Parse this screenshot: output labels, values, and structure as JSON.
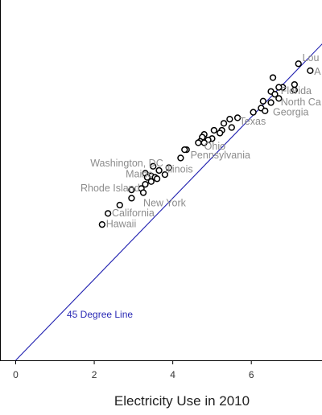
{
  "chart_data": {
    "type": "scatter",
    "xlabel": "Electricity Use in 2010",
    "ylabel": "",
    "xlim": [
      -0.4,
      7.8
    ],
    "ylim": [
      0,
      13
    ],
    "xticks": [
      "0",
      "2",
      "4",
      "6"
    ],
    "xtick_values": [
      0,
      2,
      4,
      6
    ],
    "reference_line": {
      "label": "45 Degree Line",
      "color": "#2020b0",
      "from": [
        0,
        0
      ],
      "to": [
        8,
        11.7
      ]
    },
    "marker_color": "#000000",
    "label_color": "#8c8c8c",
    "points": [
      {
        "x": 7.2,
        "y": 10.7
      },
      {
        "x": 7.5,
        "y": 10.45
      },
      {
        "x": 6.55,
        "y": 10.2
      },
      {
        "x": 7.1,
        "y": 9.95
      },
      {
        "x": 6.8,
        "y": 9.85
      },
      {
        "x": 6.7,
        "y": 9.85
      },
      {
        "x": 7.1,
        "y": 9.75
      },
      {
        "x": 6.5,
        "y": 9.7
      },
      {
        "x": 6.6,
        "y": 9.6
      },
      {
        "x": 6.7,
        "y": 9.45
      },
      {
        "x": 6.3,
        "y": 9.35
      },
      {
        "x": 6.5,
        "y": 9.3
      },
      {
        "x": 6.25,
        "y": 9.1
      },
      {
        "x": 6.35,
        "y": 9.0
      },
      {
        "x": 6.05,
        "y": 8.95
      },
      {
        "x": 5.65,
        "y": 8.75
      },
      {
        "x": 5.45,
        "y": 8.7
      },
      {
        "x": 5.3,
        "y": 8.55
      },
      {
        "x": 5.5,
        "y": 8.4
      },
      {
        "x": 5.05,
        "y": 8.3
      },
      {
        "x": 5.25,
        "y": 8.3
      },
      {
        "x": 5.2,
        "y": 8.2
      },
      {
        "x": 4.8,
        "y": 8.15
      },
      {
        "x": 4.75,
        "y": 8.05
      },
      {
        "x": 5.0,
        "y": 8.0
      },
      {
        "x": 4.9,
        "y": 7.95
      },
      {
        "x": 4.7,
        "y": 7.9
      },
      {
        "x": 4.8,
        "y": 7.85
      },
      {
        "x": 4.65,
        "y": 7.85
      },
      {
        "x": 4.35,
        "y": 7.6
      },
      {
        "x": 4.3,
        "y": 7.6
      },
      {
        "x": 4.2,
        "y": 7.3
      },
      {
        "x": 3.5,
        "y": 7.0
      },
      {
        "x": 3.9,
        "y": 6.95
      },
      {
        "x": 3.65,
        "y": 6.85
      },
      {
        "x": 3.8,
        "y": 6.7
      },
      {
        "x": 3.3,
        "y": 6.75
      },
      {
        "x": 3.45,
        "y": 6.65
      },
      {
        "x": 3.55,
        "y": 6.6
      },
      {
        "x": 3.35,
        "y": 6.6
      },
      {
        "x": 3.6,
        "y": 6.55
      },
      {
        "x": 3.45,
        "y": 6.45
      },
      {
        "x": 3.3,
        "y": 6.35
      },
      {
        "x": 3.2,
        "y": 6.2
      },
      {
        "x": 2.95,
        "y": 6.15
      },
      {
        "x": 3.25,
        "y": 6.05
      },
      {
        "x": 2.95,
        "y": 5.85
      },
      {
        "x": 2.65,
        "y": 5.6
      },
      {
        "x": 2.35,
        "y": 5.3
      },
      {
        "x": 2.2,
        "y": 4.9
      }
    ],
    "labels": [
      {
        "text": "Lou",
        "x": 7.3,
        "y": 10.8
      },
      {
        "text": "A",
        "x": 7.6,
        "y": 10.3
      },
      {
        "text": "Florida",
        "x": 6.75,
        "y": 9.6
      },
      {
        "text": "North Ca",
        "x": 6.75,
        "y": 9.2
      },
      {
        "text": "Georgia",
        "x": 6.55,
        "y": 8.83
      },
      {
        "text": "Texas",
        "x": 5.7,
        "y": 8.5
      },
      {
        "text": "Ohio",
        "x": 4.8,
        "y": 7.6
      },
      {
        "text": "Pennsylvania",
        "x": 4.45,
        "y": 7.28
      },
      {
        "text": "Washington, DC",
        "x": 1.9,
        "y": 7.0
      },
      {
        "text": "Illinois",
        "x": 3.8,
        "y": 6.78
      },
      {
        "text": "Maine",
        "x": 2.8,
        "y": 6.6
      },
      {
        "text": "Rhode Island",
        "x": 1.65,
        "y": 6.1
      },
      {
        "text": "New York",
        "x": 3.25,
        "y": 5.55
      },
      {
        "text": "California",
        "x": 2.45,
        "y": 5.2
      },
      {
        "text": "Hawaii",
        "x": 2.3,
        "y": 4.8
      }
    ]
  }
}
